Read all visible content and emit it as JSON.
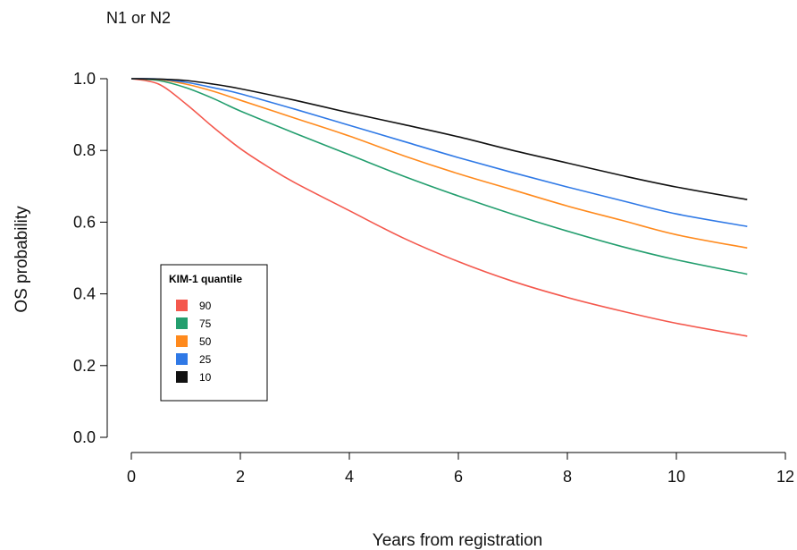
{
  "chart_data": {
    "type": "line",
    "title": "N1 or N2",
    "xlabel": "Years from registration",
    "ylabel": "OS probability",
    "xlim": [
      0,
      12
    ],
    "ylim": [
      0,
      1
    ],
    "x_ticks": [
      0,
      2,
      4,
      6,
      8,
      10,
      12
    ],
    "y_ticks": [
      "0.0",
      "0.2",
      "0.4",
      "0.6",
      "0.8",
      "1.0"
    ],
    "grid": false,
    "legend": {
      "title": "KIM-1 quantile",
      "position": "left"
    },
    "series": [
      {
        "name": "90",
        "color": "#f4584d",
        "x": [
          0,
          0.5,
          1,
          1.5,
          2,
          2.5,
          3,
          4,
          5,
          6,
          7,
          8,
          9,
          10,
          11.3
        ],
        "y": [
          1.0,
          0.985,
          0.93,
          0.865,
          0.805,
          0.755,
          0.71,
          0.632,
          0.555,
          0.49,
          0.435,
          0.39,
          0.352,
          0.318,
          0.282
        ]
      },
      {
        "name": "75",
        "color": "#239e6e",
        "x": [
          0,
          0.5,
          1,
          1.5,
          2,
          3,
          4,
          5,
          6,
          7,
          8,
          9,
          10,
          11.3
        ],
        "y": [
          1.0,
          0.995,
          0.975,
          0.945,
          0.91,
          0.848,
          0.788,
          0.728,
          0.673,
          0.622,
          0.575,
          0.532,
          0.495,
          0.455
        ]
      },
      {
        "name": "50",
        "color": "#ff8a1d",
        "x": [
          0,
          0.5,
          1,
          1.5,
          2,
          3,
          4,
          5,
          6,
          7,
          8,
          9,
          10,
          11.3
        ],
        "y": [
          1.0,
          0.998,
          0.985,
          0.965,
          0.94,
          0.89,
          0.84,
          0.785,
          0.735,
          0.69,
          0.645,
          0.605,
          0.565,
          0.528
        ]
      },
      {
        "name": "25",
        "color": "#2f79e6",
        "x": [
          0,
          0.5,
          1,
          1.5,
          2,
          3,
          4,
          5,
          6,
          7,
          8,
          9,
          10,
          11.3
        ],
        "y": [
          1.0,
          0.999,
          0.99,
          0.975,
          0.958,
          0.915,
          0.87,
          0.825,
          0.78,
          0.738,
          0.698,
          0.66,
          0.623,
          0.588
        ]
      },
      {
        "name": "10",
        "color": "#111111",
        "x": [
          0,
          0.5,
          1,
          1.5,
          2,
          3,
          4,
          5,
          6,
          7,
          8,
          9,
          10,
          11.3
        ],
        "y": [
          1.0,
          0.999,
          0.995,
          0.985,
          0.972,
          0.94,
          0.905,
          0.872,
          0.838,
          0.8,
          0.765,
          0.73,
          0.698,
          0.663
        ]
      }
    ]
  }
}
